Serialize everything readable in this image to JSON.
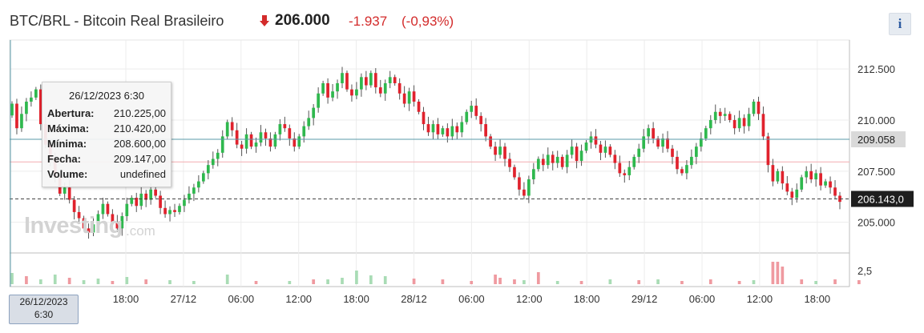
{
  "header": {
    "symbol": "BTC/BRL - Bitcoin Real Brasileiro",
    "price": "206.000",
    "change": "-1.937",
    "change_pct": "(-0,93%)",
    "info_label": "i",
    "down_color": "#d32b2b"
  },
  "tooltip": {
    "date": "26/12/2023 6:30",
    "rows": [
      {
        "label": "Abertura:",
        "value": "210.225,00"
      },
      {
        "label": "Máxima:",
        "value": "210.420,00"
      },
      {
        "label": "Mínima:",
        "value": "208.600,00"
      },
      {
        "label": "Fecha:",
        "value": "209.147,00"
      },
      {
        "label": "Volume:",
        "value": "undefined"
      }
    ]
  },
  "crosshair_x_label": {
    "line1": "26/12/2023",
    "line2": "6:30"
  },
  "watermark": {
    "brand": "Investing",
    "suffix": ".com"
  },
  "chart_data": {
    "type": "candlestick",
    "y_ticks": [
      "212.500",
      "210.000",
      "207.500",
      "205.000"
    ],
    "y_range": [
      203500,
      213600
    ],
    "x_ticks": [
      "18:00",
      "27/12",
      "06:00",
      "12:00",
      "18:00",
      "28/12",
      "06:00",
      "12:00",
      "18:00",
      "29/12",
      "06:00",
      "12:00",
      "18:00"
    ],
    "price_tags": [
      {
        "value": 209058,
        "label": "209.058",
        "style": "crosshair"
      },
      {
        "value": 206143,
        "label": "206.143,0",
        "style": "last"
      }
    ],
    "reference_line": 207950,
    "volume_tick": "2,5",
    "colors": {
      "up": "#2fb84e",
      "down": "#e0222d",
      "up_volume": "#a9dcb5",
      "down_volume": "#ef9aa0"
    },
    "closes": [
      210800,
      209600,
      210300,
      210900,
      211100,
      211500,
      209800,
      208800,
      208100,
      207200,
      206400,
      206700,
      206100,
      205500,
      205200,
      204700,
      204500,
      204900,
      205400,
      205900,
      205400,
      205000,
      204700,
      205300,
      205900,
      206200,
      205800,
      206400,
      206100,
      206600,
      206300,
      205700,
      205400,
      205600,
      205500,
      205800,
      206100,
      206400,
      206700,
      207000,
      207400,
      207800,
      208100,
      208400,
      209200,
      209900,
      209500,
      208800,
      208600,
      209300,
      208700,
      208900,
      209400,
      209100,
      208700,
      209300,
      209800,
      209600,
      209100,
      208700,
      209200,
      209700,
      210100,
      210600,
      211300,
      211800,
      211100,
      211400,
      211800,
      212300,
      211500,
      211200,
      211500,
      212100,
      211700,
      212300,
      211600,
      211300,
      211800,
      212100,
      211800,
      211300,
      210800,
      211400,
      210900,
      210400,
      209800,
      209400,
      209800,
      209300,
      209600,
      209200,
      209700,
      209400,
      209900,
      210400,
      210700,
      210200,
      209800,
      209200,
      208700,
      208300,
      208700,
      208100,
      207700,
      207200,
      206600,
      206300,
      207100,
      207600,
      208100,
      207800,
      208300,
      207900,
      208200,
      207700,
      208300,
      208700,
      208000,
      208500,
      208900,
      209200,
      208800,
      208400,
      208700,
      208300,
      207900,
      207400,
      207300,
      207700,
      208200,
      208600,
      209200,
      209600,
      209100,
      208700,
      209100,
      208600,
      208200,
      207600,
      207400,
      207800,
      208200,
      208700,
      209100,
      209600,
      210000,
      210400,
      210200,
      210300,
      210000,
      209600,
      210100,
      209700,
      210300,
      210900,
      210300,
      209200,
      207800,
      207000,
      207500,
      206900,
      206500,
      206200,
      206600,
      207200,
      207500,
      207100,
      207400,
      206800,
      207000,
      206700,
      206300,
      206000
    ],
    "volume_bars": [
      {
        "i": 0,
        "h": 14,
        "up": true
      },
      {
        "i": 3,
        "h": 10,
        "up": false
      },
      {
        "i": 6,
        "h": 6,
        "up": true
      },
      {
        "i": 9,
        "h": 12,
        "up": true
      },
      {
        "i": 12,
        "h": 8,
        "up": false
      },
      {
        "i": 15,
        "h": 5,
        "up": true
      },
      {
        "i": 18,
        "h": 7,
        "up": true
      },
      {
        "i": 21,
        "h": 4,
        "up": false
      },
      {
        "i": 24,
        "h": 9,
        "up": true
      },
      {
        "i": 28,
        "h": 6,
        "up": false
      },
      {
        "i": 33,
        "h": 5,
        "up": true
      },
      {
        "i": 38,
        "h": 4,
        "up": true
      },
      {
        "i": 45,
        "h": 12,
        "up": true
      },
      {
        "i": 51,
        "h": 4,
        "up": false
      },
      {
        "i": 58,
        "h": 4,
        "up": true
      },
      {
        "i": 63,
        "h": 6,
        "up": false
      },
      {
        "i": 66,
        "h": 6,
        "up": true
      },
      {
        "i": 69,
        "h": 8,
        "up": true
      },
      {
        "i": 72,
        "h": 17,
        "up": true
      },
      {
        "i": 75,
        "h": 11,
        "up": true
      },
      {
        "i": 78,
        "h": 10,
        "up": true
      },
      {
        "i": 84,
        "h": 7,
        "up": false
      },
      {
        "i": 90,
        "h": 6,
        "up": false
      },
      {
        "i": 96,
        "h": 4,
        "up": false
      },
      {
        "i": 101,
        "h": 12,
        "up": false
      },
      {
        "i": 102,
        "h": 8,
        "up": false
      },
      {
        "i": 105,
        "h": 6,
        "up": false
      },
      {
        "i": 107,
        "h": 5,
        "up": true
      },
      {
        "i": 110,
        "h": 15,
        "up": false
      },
      {
        "i": 114,
        "h": 4,
        "up": true
      },
      {
        "i": 119,
        "h": 4,
        "up": false
      },
      {
        "i": 125,
        "h": 6,
        "up": true
      },
      {
        "i": 131,
        "h": 5,
        "up": false
      },
      {
        "i": 135,
        "h": 6,
        "up": true
      },
      {
        "i": 140,
        "h": 4,
        "up": false
      },
      {
        "i": 146,
        "h": 6,
        "up": false
      },
      {
        "i": 152,
        "h": 4,
        "up": false
      },
      {
        "i": 155,
        "h": 5,
        "up": true
      },
      {
        "i": 159,
        "h": 28,
        "up": false
      },
      {
        "i": 160,
        "h": 28,
        "up": false
      },
      {
        "i": 161,
        "h": 22,
        "up": false
      },
      {
        "i": 165,
        "h": 6,
        "up": false
      },
      {
        "i": 168,
        "h": 4,
        "up": true
      },
      {
        "i": 172,
        "h": 6,
        "up": false
      },
      {
        "i": 177,
        "h": 5,
        "up": false
      }
    ]
  }
}
